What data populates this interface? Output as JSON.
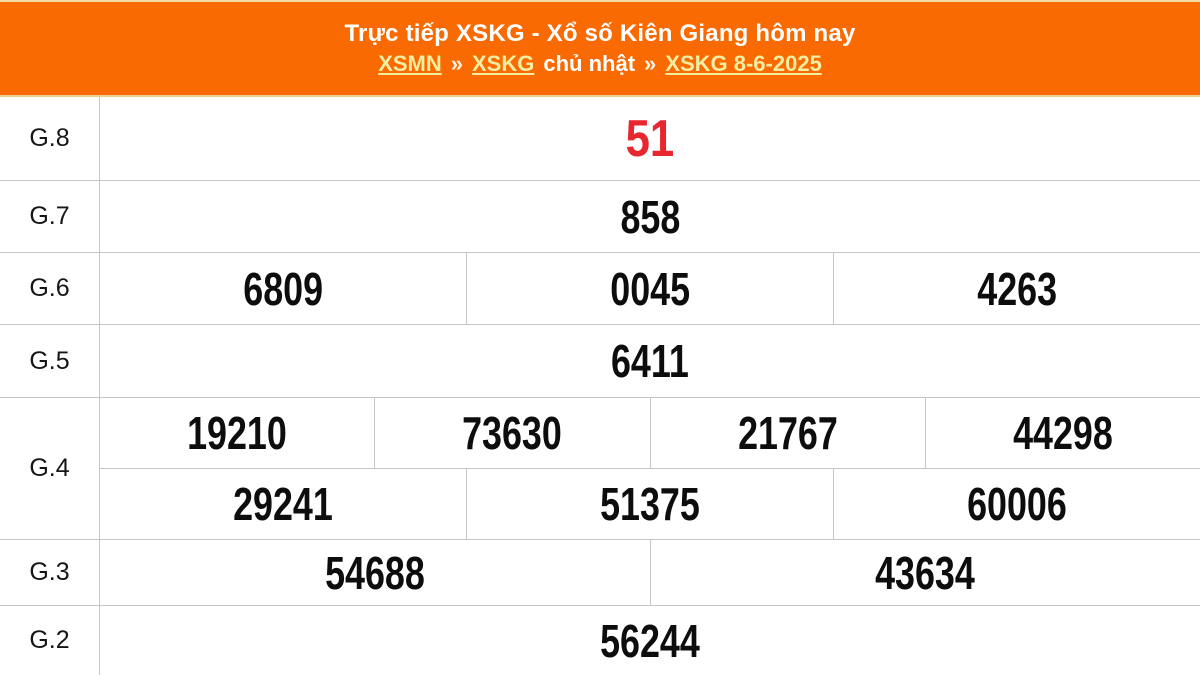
{
  "header": {
    "title": "Trực tiếp XSKG - Xổ số Kiên Giang hôm nay",
    "breadcrumb": {
      "xsmn": "XSMN",
      "sep": "»",
      "xskg": "XSKG",
      "day": "chủ nhật",
      "date_link": "XSKG 8-6-2025"
    }
  },
  "results": {
    "rows": [
      {
        "label": "G.8",
        "values": [
          "51"
        ]
      },
      {
        "label": "G.7",
        "values": [
          "858"
        ]
      },
      {
        "label": "G.6",
        "values": [
          "6809",
          "0045",
          "4263"
        ]
      },
      {
        "label": "G.5",
        "values": [
          "6411"
        ]
      },
      {
        "label": "G.4",
        "row1": [
          "19210",
          "73630",
          "21767",
          "44298"
        ],
        "row2": [
          "29241",
          "51375",
          "60006"
        ]
      },
      {
        "label": "G.3",
        "values": [
          "54688",
          "43634"
        ]
      },
      {
        "label": "G.2",
        "values": [
          "56244"
        ]
      }
    ]
  },
  "colors": {
    "header_bg": "#fa6a02",
    "link": "#f3eda0",
    "highlight_number": "#e8262d",
    "number": "#0d0d0d",
    "border": "#c6c6c6"
  }
}
